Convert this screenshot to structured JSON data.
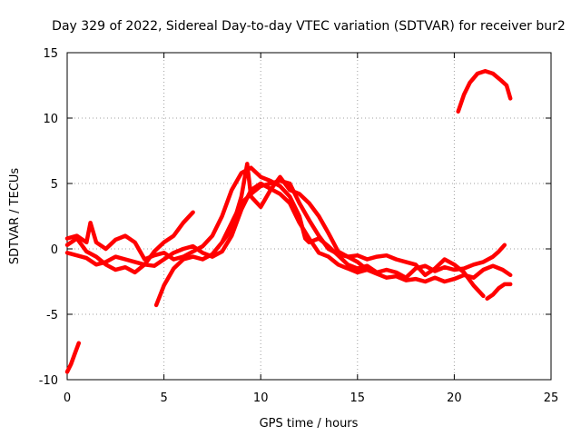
{
  "chart_data": {
    "type": "line",
    "title": "Day 329 of 2022, Sidereal Day-to-day VTEC variation (SDTVAR) for receiver bur2",
    "xlabel": "GPS time / hours",
    "ylabel": "SDTVAR / TECUs",
    "xlim": [
      0,
      25
    ],
    "ylim": [
      -10,
      15
    ],
    "xticks": [
      0,
      5,
      10,
      15,
      20,
      25
    ],
    "yticks": [
      -10,
      -5,
      0,
      5,
      10,
      15
    ],
    "grid": true,
    "line_color": "#ff0000",
    "series": [
      {
        "name": "s1",
        "points": [
          [
            0.0,
            -9.4
          ],
          [
            0.2,
            -8.8
          ],
          [
            0.4,
            -8.0
          ],
          [
            0.6,
            -7.2
          ]
        ]
      },
      {
        "name": "s2",
        "points": [
          [
            0.0,
            0.3
          ],
          [
            0.5,
            0.8
          ],
          [
            1.0,
            -0.2
          ],
          [
            1.5,
            -0.6
          ],
          [
            2.0,
            -1.2
          ],
          [
            2.5,
            -1.6
          ],
          [
            3.0,
            -1.4
          ],
          [
            3.5,
            -1.8
          ],
          [
            4.0,
            -1.2
          ],
          [
            4.5,
            -0.2
          ],
          [
            5.0,
            0.5
          ],
          [
            5.5,
            1.0
          ],
          [
            6.0,
            2.0
          ],
          [
            6.5,
            2.8
          ]
        ]
      },
      {
        "name": "s3",
        "points": [
          [
            0.0,
            0.8
          ],
          [
            0.5,
            1.0
          ],
          [
            1.0,
            0.5
          ],
          [
            1.2,
            2.0
          ],
          [
            1.5,
            0.5
          ],
          [
            2.0,
            0.0
          ],
          [
            2.5,
            0.7
          ],
          [
            3.0,
            1.0
          ],
          [
            3.5,
            0.5
          ],
          [
            4.0,
            -0.8
          ],
          [
            4.5,
            -0.5
          ],
          [
            5.0,
            -0.3
          ],
          [
            5.5,
            -0.8
          ],
          [
            6.0,
            -0.6
          ],
          [
            6.5,
            -0.2
          ],
          [
            7.0,
            0.2
          ],
          [
            7.5,
            1.0
          ],
          [
            8.0,
            2.5
          ],
          [
            8.5,
            4.5
          ],
          [
            9.0,
            5.8
          ],
          [
            9.5,
            6.2
          ],
          [
            10.0,
            5.5
          ],
          [
            10.5,
            5.2
          ],
          [
            11.0,
            4.8
          ],
          [
            11.5,
            4.0
          ],
          [
            12.0,
            2.5
          ],
          [
            12.3,
            0.8
          ],
          [
            12.5,
            0.5
          ],
          [
            13.0,
            0.8
          ],
          [
            13.5,
            0.2
          ],
          [
            14.0,
            -0.5
          ],
          [
            14.5,
            -1.2
          ],
          [
            15.0,
            -1.5
          ],
          [
            15.5,
            -1.3
          ],
          [
            16.0,
            -1.8
          ],
          [
            16.5,
            -1.6
          ],
          [
            17.0,
            -1.8
          ],
          [
            17.5,
            -2.2
          ],
          [
            18.0,
            -1.5
          ],
          [
            18.5,
            -1.3
          ],
          [
            19.0,
            -1.7
          ],
          [
            19.5,
            -1.4
          ],
          [
            20.0,
            -1.6
          ],
          [
            20.5,
            -1.5
          ],
          [
            21.0,
            -1.2
          ],
          [
            21.5,
            -1.0
          ],
          [
            22.0,
            -0.6
          ],
          [
            22.3,
            -0.2
          ],
          [
            22.6,
            0.3
          ]
        ]
      },
      {
        "name": "s4",
        "points": [
          [
            0.0,
            -0.3
          ],
          [
            0.5,
            -0.5
          ],
          [
            1.0,
            -0.7
          ],
          [
            1.5,
            -1.2
          ],
          [
            2.0,
            -1.0
          ],
          [
            2.5,
            -0.6
          ],
          [
            3.0,
            -0.8
          ],
          [
            3.5,
            -1.0
          ],
          [
            4.0,
            -1.2
          ],
          [
            4.5,
            -1.3
          ],
          [
            5.0,
            -0.8
          ],
          [
            5.5,
            -0.3
          ],
          [
            6.0,
            0.0
          ],
          [
            6.5,
            0.2
          ],
          [
            7.0,
            -0.3
          ],
          [
            7.5,
            -0.6
          ],
          [
            8.0,
            -0.2
          ],
          [
            8.5,
            1.0
          ],
          [
            9.0,
            3.0
          ],
          [
            9.5,
            4.5
          ],
          [
            10.0,
            5.0
          ],
          [
            10.5,
            4.6
          ],
          [
            11.0,
            4.2
          ],
          [
            11.5,
            3.5
          ],
          [
            12.0,
            2.0
          ],
          [
            12.5,
            0.8
          ],
          [
            13.0,
            -0.3
          ],
          [
            13.5,
            -0.6
          ],
          [
            14.0,
            -1.2
          ],
          [
            14.5,
            -1.5
          ],
          [
            15.0,
            -1.8
          ],
          [
            15.5,
            -1.6
          ],
          [
            16.0,
            -1.9
          ],
          [
            16.5,
            -2.2
          ],
          [
            17.0,
            -2.1
          ],
          [
            17.5,
            -2.4
          ],
          [
            18.0,
            -2.3
          ],
          [
            18.5,
            -2.5
          ],
          [
            19.0,
            -2.2
          ],
          [
            19.5,
            -2.5
          ],
          [
            20.0,
            -2.3
          ],
          [
            20.5,
            -2.0
          ],
          [
            21.0,
            -2.2
          ],
          [
            21.5,
            -1.6
          ],
          [
            22.0,
            -1.3
          ],
          [
            22.5,
            -1.6
          ],
          [
            22.9,
            -2.0
          ]
        ]
      },
      {
        "name": "s5",
        "points": [
          [
            4.6,
            -4.3
          ],
          [
            5.0,
            -2.8
          ],
          [
            5.5,
            -1.5
          ],
          [
            6.0,
            -0.8
          ],
          [
            6.5,
            -0.6
          ],
          [
            7.0,
            -0.8
          ],
          [
            7.5,
            -0.4
          ],
          [
            8.0,
            0.5
          ],
          [
            8.5,
            2.0
          ],
          [
            9.0,
            3.5
          ],
          [
            9.5,
            4.2
          ],
          [
            10.0,
            4.8
          ],
          [
            10.5,
            5.0
          ],
          [
            11.0,
            5.2
          ],
          [
            11.5,
            5.0
          ],
          [
            12.0,
            3.5
          ],
          [
            12.5,
            2.2
          ],
          [
            13.0,
            1.0
          ],
          [
            13.5,
            0.0
          ],
          [
            14.0,
            -0.4
          ],
          [
            14.5,
            -0.6
          ],
          [
            15.0,
            -0.5
          ],
          [
            15.5,
            -0.8
          ],
          [
            16.0,
            -0.6
          ],
          [
            16.5,
            -0.5
          ],
          [
            17.0,
            -0.8
          ],
          [
            17.5,
            -1.0
          ],
          [
            18.0,
            -1.2
          ],
          [
            18.5,
            -2.0
          ],
          [
            19.0,
            -1.5
          ],
          [
            19.5,
            -0.8
          ],
          [
            20.0,
            -1.2
          ],
          [
            20.5,
            -1.8
          ],
          [
            21.0,
            -2.8
          ],
          [
            21.5,
            -3.6
          ]
        ]
      },
      {
        "name": "s6",
        "points": [
          [
            8.0,
            0.5
          ],
          [
            8.5,
            1.5
          ],
          [
            9.0,
            4.0
          ],
          [
            9.3,
            6.5
          ],
          [
            9.5,
            4.0
          ],
          [
            10.0,
            3.2
          ],
          [
            10.5,
            4.5
          ],
          [
            11.0,
            5.5
          ],
          [
            11.5,
            4.5
          ],
          [
            12.0,
            4.2
          ],
          [
            12.5,
            3.5
          ],
          [
            13.0,
            2.5
          ],
          [
            13.5,
            1.2
          ],
          [
            14.0,
            -0.2
          ],
          [
            14.5,
            -0.6
          ],
          [
            15.0,
            -1.0
          ],
          [
            15.5,
            -1.6
          ]
        ]
      },
      {
        "name": "s7",
        "points": [
          [
            21.7,
            -3.8
          ],
          [
            22.0,
            -3.5
          ],
          [
            22.3,
            -3.0
          ],
          [
            22.6,
            -2.7
          ],
          [
            22.9,
            -2.7
          ]
        ]
      },
      {
        "name": "s8",
        "points": [
          [
            20.2,
            10.5
          ],
          [
            20.5,
            11.8
          ],
          [
            20.8,
            12.7
          ],
          [
            21.2,
            13.4
          ],
          [
            21.6,
            13.6
          ],
          [
            22.0,
            13.4
          ],
          [
            22.4,
            12.9
          ],
          [
            22.7,
            12.5
          ],
          [
            22.9,
            11.5
          ]
        ]
      }
    ]
  }
}
